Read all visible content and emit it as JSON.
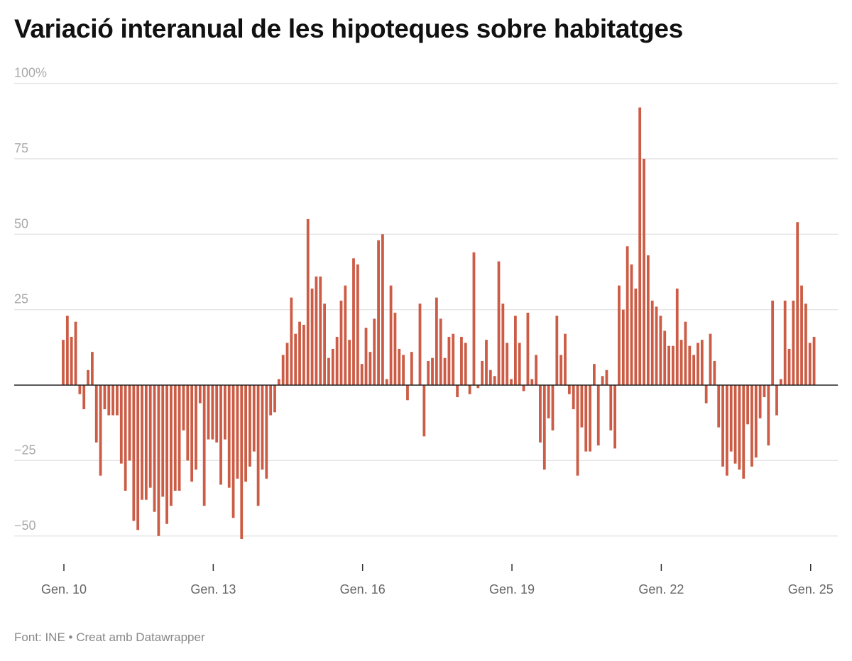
{
  "chart_data": {
    "type": "bar",
    "title": "Variació interanual de les hipoteques sobre habitatges",
    "xlabel": "",
    "ylabel": "",
    "start": "2010-01",
    "frequency": "monthly",
    "ylim": [
      -60,
      100
    ],
    "y_ticks": [
      100,
      75,
      50,
      25,
      0,
      -25,
      -50
    ],
    "y_tick_labels": [
      "100%",
      "75",
      "50",
      "25",
      "",
      "−25",
      "−50"
    ],
    "x_ticks": [
      {
        "month_index": 0,
        "label": "Gen. 10"
      },
      {
        "month_index": 36,
        "label": "Gen. 13"
      },
      {
        "month_index": 72,
        "label": "Gen. 16"
      },
      {
        "month_index": 108,
        "label": "Gen. 19"
      },
      {
        "month_index": 144,
        "label": "Gen. 22"
      },
      {
        "month_index": 180,
        "label": "Gen. 25"
      }
    ],
    "grid": true,
    "bar_color": "#cc5c45",
    "values": [
      15,
      23,
      16,
      21,
      -3,
      -8,
      5,
      11,
      -19,
      -30,
      -8,
      -10,
      -10,
      -10,
      -26,
      -35,
      -25,
      -45,
      -48,
      -38,
      -38,
      -34,
      -42,
      -50,
      -37,
      -46,
      -40,
      -35,
      -35,
      -15,
      -25,
      -32,
      -28,
      -6,
      -40,
      -18,
      -18,
      -19,
      -33,
      -18,
      -34,
      -44,
      -31,
      -51,
      -32,
      -27,
      -22,
      -40,
      -28,
      -31,
      -10,
      -9,
      2,
      10,
      14,
      29,
      17,
      21,
      20,
      55,
      32,
      36,
      36,
      27,
      9,
      12,
      16,
      28,
      33,
      15,
      42,
      40,
      7,
      19,
      11,
      22,
      48,
      50,
      2,
      33,
      24,
      12,
      10,
      -5,
      11,
      0,
      27,
      -17,
      8,
      9,
      29,
      22,
      9,
      16,
      17,
      -4,
      16,
      14,
      -3,
      44,
      -1,
      8,
      15,
      5,
      3,
      41,
      27,
      14,
      2,
      23,
      14,
      -2,
      24,
      2,
      10,
      -19,
      -28,
      -11,
      -15,
      23,
      10,
      17,
      -3,
      -8,
      -30,
      -14,
      -22,
      -22,
      7,
      -20,
      3,
      5,
      -15,
      -21,
      33,
      25,
      46,
      40,
      32,
      92,
      75,
      43,
      28,
      26,
      23,
      18,
      13,
      13,
      32,
      15,
      21,
      13,
      10,
      14,
      15,
      -6,
      17,
      8,
      -14,
      -27,
      -30,
      -22,
      -26,
      -28,
      -31,
      -13,
      -27,
      -24,
      -11,
      -4,
      -20,
      28,
      -10,
      2,
      28,
      12,
      28,
      54,
      33,
      27,
      14,
      16
    ]
  },
  "footer": "Font: INE • Creat amb Datawrapper"
}
